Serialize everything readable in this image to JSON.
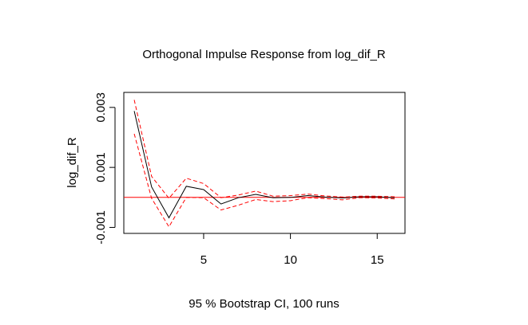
{
  "chart_data": {
    "type": "line",
    "title": "Orthogonal Impulse Response from log_dif_R",
    "xlabel": "95 % Bootstrap CI,  100 runs",
    "ylabel": "log_dif_R",
    "xlim": [
      0.4,
      16.6
    ],
    "ylim": [
      -0.0012,
      0.0035
    ],
    "xticks": [
      5,
      10,
      15
    ],
    "yticks": [
      -0.001,
      0.001,
      0.003
    ],
    "ytick_labels": [
      "-0.001",
      "0.001",
      "0.003"
    ],
    "xtick_labels": [
      "5",
      "10",
      "15"
    ],
    "x": [
      1,
      2,
      3,
      4,
      5,
      6,
      7,
      8,
      9,
      10,
      11,
      12,
      13,
      14,
      15,
      16
    ],
    "zero_line": 0,
    "grid": false,
    "series": [
      {
        "role": "response",
        "color": "#000000",
        "dash": "solid",
        "values": [
          0.00288,
          0.00035,
          -0.00068,
          0.00037,
          0.00026,
          -0.00022,
          -1e-05,
          0.0001,
          -1e-05,
          0.0,
          6e-05,
          1e-05,
          -2e-05,
          2e-05,
          2e-05,
          -1e-05
        ]
      },
      {
        "role": "upper",
        "color": "#ff0000",
        "dash": "dashed",
        "values": [
          0.00325,
          0.0007,
          -3e-05,
          0.00064,
          0.00046,
          -1e-05,
          8e-05,
          0.00021,
          4e-05,
          6e-05,
          0.00011,
          5e-05,
          1e-05,
          4e-05,
          4e-05,
          2e-05
        ]
      },
      {
        "role": "lower",
        "color": "#ff0000",
        "dash": "dashed",
        "values": [
          0.00212,
          -3e-05,
          -0.00098,
          0.0,
          -1e-05,
          -0.00042,
          -0.00026,
          -7e-05,
          -0.00014,
          -0.00011,
          -1e-05,
          -4e-05,
          -8e-05,
          -1e-05,
          -2e-05,
          -5e-05
        ]
      }
    ],
    "zero_line_color": "#ff0000"
  }
}
